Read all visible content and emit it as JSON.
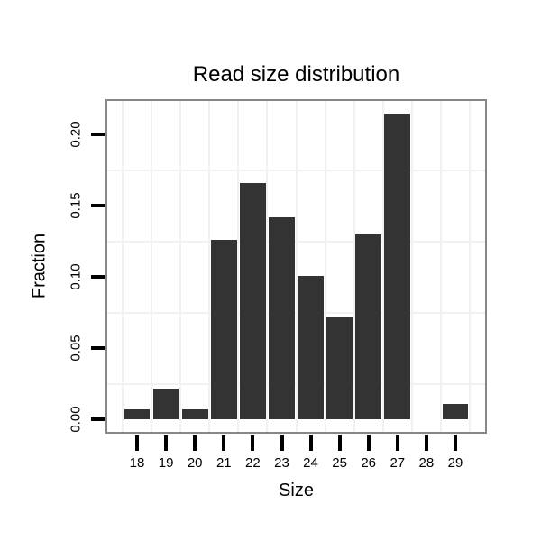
{
  "chart_data": {
    "type": "bar",
    "title": "Read size distribution",
    "xlabel": "Size",
    "ylabel": "Fraction",
    "categories": [
      "18",
      "19",
      "20",
      "21",
      "22",
      "23",
      "24",
      "25",
      "26",
      "27",
      "28",
      "29"
    ],
    "values": [
      0.007,
      0.022,
      0.007,
      0.126,
      0.166,
      0.142,
      0.101,
      0.072,
      0.13,
      0.215,
      0,
      0.011
    ],
    "ylim": [
      -0.0086,
      0.2236
    ],
    "yticks": [
      0.0,
      0.05,
      0.1,
      0.15,
      0.2
    ],
    "ytick_labels": [
      "0.00",
      "0.05",
      "0.10",
      "0.15",
      "0.20"
    ],
    "grid": true,
    "gridlines_y": [
      0.025,
      0.075,
      0.125,
      0.175
    ],
    "legend_position": "none",
    "colors": {
      "bar": "#333333",
      "panel_border": "#878787",
      "gridline": "#f1f1f1",
      "tick": "#000000",
      "text": "#000000",
      "background": "#ffffff"
    }
  }
}
